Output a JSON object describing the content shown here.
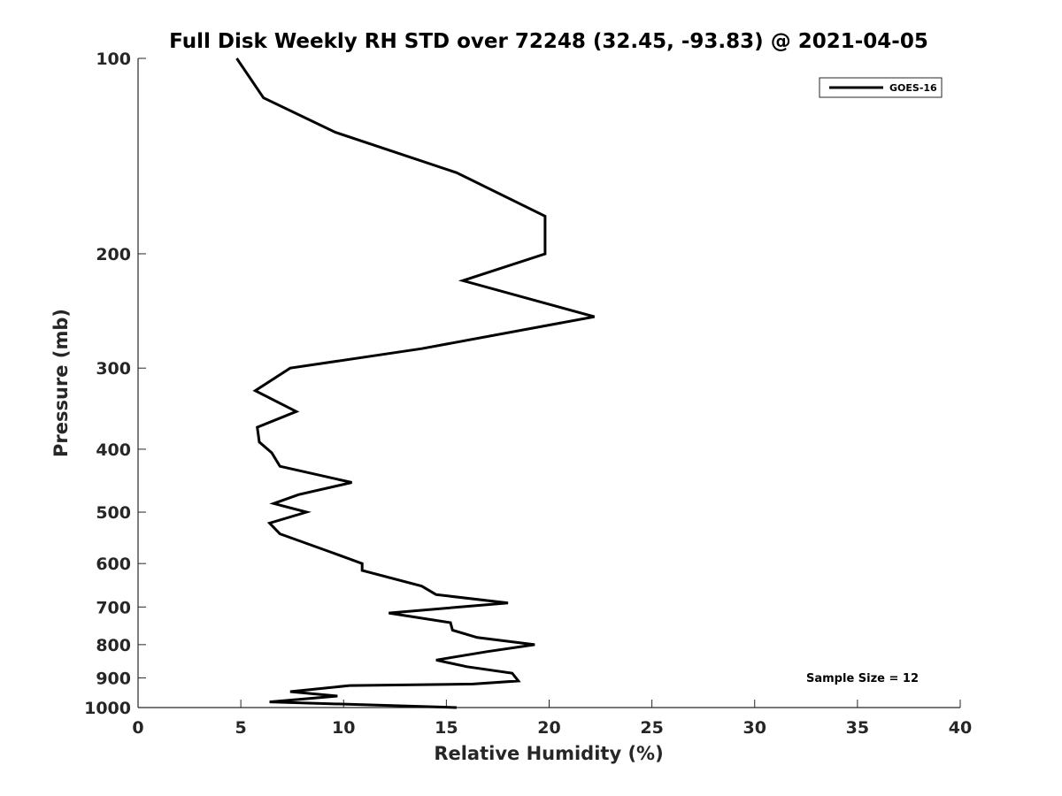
{
  "chart_data": {
    "type": "line",
    "title": "Full Disk Weekly RH STD over 72248 (32.45, -93.83) @ 2021-04-05",
    "xlabel": "Relative Humidity (%)",
    "ylabel": "Pressure (mb)",
    "xlim": [
      0,
      40
    ],
    "ylim": [
      1000,
      100
    ],
    "yscale": "log",
    "y_reversed": true,
    "xticks": [
      "0",
      "5",
      "10",
      "15",
      "20",
      "25",
      "30",
      "35",
      "40"
    ],
    "yticks": [
      {
        "value": 100,
        "label": "100"
      },
      {
        "value": 200,
        "label": "200"
      },
      {
        "value": 300,
        "label": "300"
      },
      {
        "value": 400,
        "label": "400"
      },
      {
        "value": 500,
        "label": "500"
      },
      {
        "value": 600,
        "label": "600"
      },
      {
        "value": 700,
        "label": "700"
      },
      {
        "value": 800,
        "label": "800"
      },
      {
        "value": 900,
        "label": "900"
      },
      {
        "value": 1000,
        "label": "1000"
      }
    ],
    "grid": false,
    "legend": {
      "position": "top-right"
    },
    "series": [
      {
        "name": "GOES-16",
        "color": "#000000",
        "x": [
          4.8,
          6.1,
          9.6,
          15.5,
          19.8,
          19.8,
          15.8,
          22.2,
          13.8,
          7.4,
          5.7,
          7.7,
          5.8,
          5.9,
          6.5,
          6.9,
          10.4,
          7.8,
          6.6,
          8.2,
          6.4,
          6.9,
          9.3,
          10.9,
          10.9,
          13.8,
          14.5,
          18.0,
          12.2,
          15.2,
          15.3,
          16.5,
          19.3,
          17.0,
          14.5,
          16.0,
          18.2,
          18.5,
          16.3,
          10.3,
          7.4,
          9.7,
          6.4,
          15.5
        ],
        "y": [
          100,
          115,
          130,
          150,
          175,
          200,
          220,
          250,
          280,
          300,
          325,
          350,
          370,
          390,
          405,
          425,
          450,
          470,
          485,
          500,
          520,
          540,
          575,
          600,
          615,
          650,
          670,
          690,
          715,
          740,
          760,
          780,
          800,
          820,
          845,
          865,
          885,
          910,
          920,
          925,
          945,
          960,
          980,
          1000
        ]
      }
    ],
    "annotations": [
      "Sample Size = 12"
    ]
  }
}
